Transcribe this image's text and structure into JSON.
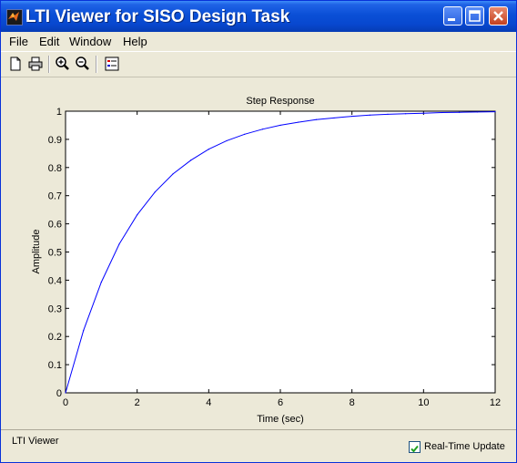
{
  "window": {
    "title": "LTI Viewer for SISO Design Task",
    "title_icon": "matlab-logo-icon",
    "controls": [
      "minimize-icon",
      "maximize-icon",
      "close-icon"
    ]
  },
  "menu": {
    "items": [
      {
        "label": "File"
      },
      {
        "label": "Edit"
      },
      {
        "label": "Window"
      },
      {
        "label": "Help"
      }
    ]
  },
  "toolbar": {
    "tools": [
      "new-document-icon",
      "print-icon",
      "zoom-in-icon",
      "zoom-out-icon",
      "legend-icon"
    ]
  },
  "colors": {
    "response_line": "#0000ff",
    "titlebar": "#0a4fd6",
    "background": "#ece9d8"
  },
  "chart_data": {
    "type": "line",
    "title": "Step Response",
    "xlabel": "Time (sec)",
    "ylabel": "Amplitude",
    "xlim": [
      0,
      12
    ],
    "ylim": [
      0,
      1
    ],
    "x_ticks": [
      "0",
      "2",
      "4",
      "6",
      "8",
      "10",
      "12"
    ],
    "y_ticks": [
      "0",
      "0.1",
      "0.2",
      "0.3",
      "0.4",
      "0.5",
      "0.6",
      "0.7",
      "0.8",
      "0.9",
      "1"
    ],
    "grid": false,
    "reference_line": {
      "y": 1,
      "style": "dashed"
    },
    "series": [
      {
        "x": [
          0,
          0.5,
          1,
          1.5,
          2,
          2.5,
          3,
          3.5,
          4,
          4.5,
          5,
          5.5,
          6,
          6.5,
          7,
          7.5,
          8,
          8.5,
          9,
          9.5,
          10,
          10.5,
          11,
          11.5,
          12
        ],
        "y": [
          0,
          0.221,
          0.393,
          0.528,
          0.632,
          0.713,
          0.777,
          0.826,
          0.865,
          0.895,
          0.918,
          0.936,
          0.95,
          0.961,
          0.97,
          0.976,
          0.982,
          0.986,
          0.989,
          0.991,
          0.993,
          0.995,
          0.996,
          0.997,
          0.998
        ]
      }
    ]
  },
  "status": {
    "text": "LTI Viewer",
    "realtime_label": "Real-Time Update",
    "realtime_checked": true
  }
}
